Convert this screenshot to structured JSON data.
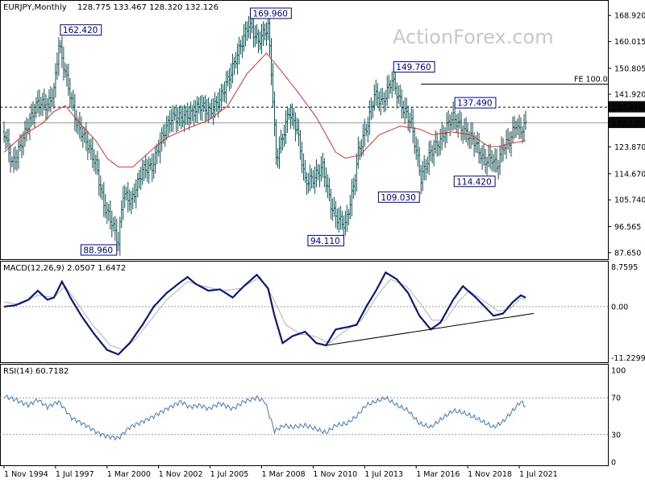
{
  "header": {
    "symbol": "EURJPY,Monthly",
    "ohlc": "128.775 133.467 128.320 132.126",
    "watermark": "ActionForex.com"
  },
  "colors": {
    "price_bars": "#1f4e4e",
    "moving_average": "#e03030",
    "macd_line": "#0a1a78",
    "macd_signal": "#b0b0b0",
    "rsi_line": "#3a78c8",
    "label_text": "#000080",
    "price_tag_bg": "#0a0a0a"
  },
  "chart_data": [
    {
      "type": "ohlc",
      "panel": "price",
      "title": "EURJPY,Monthly",
      "y_ticks": [
        "168.920",
        "160.015",
        "150.805",
        "141.920",
        "132.126",
        "123.870",
        "114.670",
        "105.740",
        "96.565",
        "87.650"
      ],
      "ylim": [
        86.5,
        172
      ],
      "price_tag": "132.126",
      "reference_lines": [
        {
          "label": "137.490",
          "value": 137.49,
          "style": "dashed"
        },
        {
          "label": "FE 100.0",
          "value": 145.4,
          "style": "solid"
        }
      ],
      "swing_labels": [
        {
          "label": "162.420",
          "value": 162.42,
          "date": "1997-09"
        },
        {
          "label": "169.960",
          "value": 169.96,
          "date": "2007-07"
        },
        {
          "label": "88.960",
          "value": 88.96,
          "date": "2000-10"
        },
        {
          "label": "94.110",
          "value": 94.11,
          "date": "2012-07"
        },
        {
          "label": "149.760",
          "value": 149.76,
          "date": "2014-12"
        },
        {
          "label": "109.030",
          "value": 109.03,
          "date": "2016-06"
        },
        {
          "label": "137.490",
          "value": 137.49,
          "date": "2018-02"
        },
        {
          "label": "114.420",
          "value": 114.42,
          "date": "2020-05"
        }
      ],
      "anchors": [
        [
          "1994-11",
          129.0
        ],
        [
          "1995-04",
          118.0
        ],
        [
          "1995-07",
          121.0
        ],
        [
          "1996-03",
          133.0
        ],
        [
          "1996-08",
          139.0
        ],
        [
          "1997-02",
          138.0
        ],
        [
          "1997-06",
          143.0
        ],
        [
          "1997-09",
          159.0
        ],
        [
          "1998-02",
          147.0
        ],
        [
          "1998-08",
          132.0
        ],
        [
          "1999-02",
          126.0
        ],
        [
          "1999-08",
          118.0
        ],
        [
          "2000-01",
          104.0
        ],
        [
          "2000-06",
          98.0
        ],
        [
          "2000-10",
          91.0
        ],
        [
          "2001-01",
          108.0
        ],
        [
          "2001-06",
          105.0
        ],
        [
          "2002-01",
          116.0
        ],
        [
          "2002-07",
          117.0
        ],
        [
          "2003-01",
          127.0
        ],
        [
          "2003-07",
          134.0
        ],
        [
          "2004-01",
          134.0
        ],
        [
          "2004-07",
          135.0
        ],
        [
          "2005-01",
          138.0
        ],
        [
          "2005-07",
          136.0
        ],
        [
          "2006-01",
          140.0
        ],
        [
          "2006-07",
          148.0
        ],
        [
          "2007-01",
          157.0
        ],
        [
          "2007-07",
          166.0
        ],
        [
          "2008-01",
          160.0
        ],
        [
          "2008-07",
          165.0
        ],
        [
          "2008-09",
          150.0
        ],
        [
          "2008-12",
          120.0
        ],
        [
          "2009-03",
          125.0
        ],
        [
          "2009-08",
          136.0
        ],
        [
          "2010-01",
          130.0
        ],
        [
          "2010-06",
          112.0
        ],
        [
          "2010-11",
          113.0
        ],
        [
          "2011-05",
          117.0
        ],
        [
          "2011-10",
          104.0
        ],
        [
          "2012-01",
          100.0
        ],
        [
          "2012-07",
          97.0
        ],
        [
          "2012-12",
          110.0
        ],
        [
          "2013-03",
          122.0
        ],
        [
          "2013-09",
          132.0
        ],
        [
          "2014-01",
          142.0
        ],
        [
          "2014-06",
          139.0
        ],
        [
          "2014-12",
          147.0
        ],
        [
          "2015-06",
          138.0
        ],
        [
          "2015-12",
          132.0
        ],
        [
          "2016-06",
          113.0
        ],
        [
          "2016-12",
          122.0
        ],
        [
          "2017-06",
          126.0
        ],
        [
          "2017-12",
          133.0
        ],
        [
          "2018-02",
          134.0
        ],
        [
          "2018-09",
          129.0
        ],
        [
          "2019-03",
          126.0
        ],
        [
          "2019-09",
          119.0
        ],
        [
          "2020-02",
          120.0
        ],
        [
          "2020-05",
          117.0
        ],
        [
          "2020-09",
          124.0
        ],
        [
          "2021-01",
          126.0
        ],
        [
          "2021-05",
          132.0
        ],
        [
          "2021-07",
          129.0
        ],
        [
          "2021-11",
          131.5
        ]
      ],
      "moving_average": [
        [
          "1994-11",
          122.0
        ],
        [
          "1995-11",
          128.0
        ],
        [
          "1996-11",
          132.0
        ],
        [
          "1997-06",
          136.0
        ],
        [
          "1998-01",
          138.0
        ],
        [
          "1998-10",
          132.0
        ],
        [
          "1999-08",
          126.0
        ],
        [
          "2000-03",
          120.0
        ],
        [
          "2000-10",
          117.0
        ],
        [
          "2001-07",
          117.0
        ],
        [
          "2002-05",
          122.0
        ],
        [
          "2003-04",
          127.0
        ],
        [
          "2004-04",
          130.0
        ],
        [
          "2005-06",
          133.0
        ],
        [
          "2006-06",
          138.0
        ],
        [
          "2007-06",
          149.0
        ],
        [
          "2008-06",
          156.0
        ],
        [
          "2009-03",
          150.0
        ],
        [
          "2010-01",
          143.0
        ],
        [
          "2011-01",
          134.0
        ],
        [
          "2012-01",
          122.0
        ],
        [
          "2012-07",
          120.0
        ],
        [
          "2013-04",
          121.0
        ],
        [
          "2014-04",
          128.0
        ],
        [
          "2015-05",
          131.0
        ],
        [
          "2016-05",
          130.0
        ],
        [
          "2017-01",
          128.0
        ],
        [
          "2018-01",
          129.0
        ],
        [
          "2019-01",
          128.0
        ],
        [
          "2019-12",
          124.0
        ],
        [
          "2020-06",
          124.0
        ],
        [
          "2021-01",
          125.0
        ],
        [
          "2021-11",
          126.0
        ]
      ]
    },
    {
      "type": "line",
      "panel": "macd",
      "title": "MACD(12,26,9) 2.0507 1.6472",
      "y_ticks": [
        "8.7595",
        "0.00",
        "-11.2299"
      ],
      "ylim": [
        -11.5,
        9.0
      ],
      "series": [
        {
          "values": [
            [
              "1994-11",
              0.0
            ],
            [
              "1995-06",
              0.3
            ],
            [
              "1996-02",
              1.5
            ],
            [
              "1996-08",
              3.5
            ],
            [
              "1997-02",
              1.5
            ],
            [
              "1997-06",
              2.0
            ],
            [
              "1997-11",
              5.5
            ],
            [
              "1998-05",
              1.5
            ],
            [
              "1998-11",
              -2.0
            ],
            [
              "1999-07",
              -6.0
            ],
            [
              "2000-03",
              -9.5
            ],
            [
              "2000-10",
              -10.5
            ],
            [
              "2001-05",
              -8.0
            ],
            [
              "2002-01",
              -4.0
            ],
            [
              "2002-08",
              0.0
            ],
            [
              "2003-04",
              3.0
            ],
            [
              "2004-01",
              5.5
            ],
            [
              "2004-05",
              6.5
            ],
            [
              "2004-10",
              5.0
            ],
            [
              "2005-06",
              3.5
            ],
            [
              "2006-01",
              3.8
            ],
            [
              "2006-09",
              2.0
            ],
            [
              "2007-04",
              4.5
            ],
            [
              "2007-12",
              7.0
            ],
            [
              "2008-07",
              4.0
            ],
            [
              "2008-11",
              -2.0
            ],
            [
              "2009-04",
              -8.0
            ],
            [
              "2009-10",
              -6.5
            ],
            [
              "2010-06",
              -5.5
            ],
            [
              "2011-01",
              -8.0
            ],
            [
              "2011-07",
              -8.5
            ],
            [
              "2012-01",
              -5.0
            ],
            [
              "2012-08",
              -4.5
            ],
            [
              "2013-02",
              -4.0
            ],
            [
              "2013-08",
              0.0
            ],
            [
              "2014-02",
              3.5
            ],
            [
              "2014-08",
              7.5
            ],
            [
              "2015-03",
              6.0
            ],
            [
              "2015-10",
              3.0
            ],
            [
              "2016-05",
              -2.0
            ],
            [
              "2016-12",
              -5.0
            ],
            [
              "2017-06",
              -3.5
            ],
            [
              "2018-02",
              1.5
            ],
            [
              "2018-08",
              4.5
            ],
            [
              "2019-04",
              2.0
            ],
            [
              "2020-03",
              -2.0
            ],
            [
              "2020-09",
              -1.5
            ],
            [
              "2021-03",
              1.0
            ],
            [
              "2021-08",
              2.5
            ],
            [
              "2021-11",
              2.0
            ]
          ]
        },
        {
          "values": [
            [
              "1994-11",
              1.0
            ],
            [
              "1995-09",
              0.5
            ],
            [
              "1996-08",
              2.5
            ],
            [
              "1997-06",
              2.0
            ],
            [
              "1998-01",
              4.5
            ],
            [
              "1998-08",
              1.0
            ],
            [
              "1999-06",
              -4.0
            ],
            [
              "2000-05",
              -8.5
            ],
            [
              "2001-01",
              -9.5
            ],
            [
              "2001-09",
              -7.0
            ],
            [
              "2002-06",
              -3.0
            ],
            [
              "2003-04",
              1.5
            ],
            [
              "2004-05",
              5.5
            ],
            [
              "2005-03",
              4.5
            ],
            [
              "2006-03",
              3.5
            ],
            [
              "2007-02",
              4.0
            ],
            [
              "2008-02",
              6.5
            ],
            [
              "2008-10",
              2.0
            ],
            [
              "2009-06",
              -4.0
            ],
            [
              "2010-03",
              -6.0
            ],
            [
              "2010-12",
              -6.5
            ],
            [
              "2011-09",
              -8.0
            ],
            [
              "2012-06",
              -5.5
            ],
            [
              "2013-05",
              -3.0
            ],
            [
              "2014-03",
              2.5
            ],
            [
              "2014-11",
              6.0
            ],
            [
              "2015-09",
              4.5
            ],
            [
              "2016-06",
              0.5
            ],
            [
              "2017-01",
              -3.0
            ],
            [
              "2017-09",
              -3.0
            ],
            [
              "2018-05",
              1.0
            ],
            [
              "2018-12",
              3.5
            ],
            [
              "2019-08",
              1.5
            ],
            [
              "2020-06",
              -1.0
            ],
            [
              "2021-01",
              -0.5
            ],
            [
              "2021-08",
              1.8
            ],
            [
              "2021-11",
              1.65
            ]
          ]
        }
      ],
      "trendline": [
        [
          "2011-07",
          -8.5
        ],
        [
          "2022-04",
          -1.5
        ]
      ]
    },
    {
      "type": "line",
      "panel": "rsi",
      "title": "RSI(14) 60.7182",
      "y_ticks": [
        "100",
        "70",
        "30",
        "0"
      ],
      "ylim": [
        0,
        100
      ],
      "levels": [
        70,
        30
      ],
      "series": [
        {
          "values": [
            [
              "1994-11",
              72.0
            ],
            [
              "1995-06",
              68.0
            ],
            [
              "1996-02",
              62.0
            ],
            [
              "1996-08",
              68.0
            ],
            [
              "1997-02",
              60.0
            ],
            [
              "1997-09",
              66.0
            ],
            [
              "1998-05",
              48.0
            ],
            [
              "1999-02",
              40.0
            ],
            [
              "1999-09",
              32.0
            ],
            [
              "2000-03",
              28.0
            ],
            [
              "2000-10",
              26.0
            ],
            [
              "2001-05",
              38.0
            ],
            [
              "2002-01",
              44.0
            ],
            [
              "2002-08",
              50.0
            ],
            [
              "2003-04",
              58.0
            ],
            [
              "2004-01",
              66.0
            ],
            [
              "2004-06",
              60.0
            ],
            [
              "2005-01",
              62.0
            ],
            [
              "2005-06",
              58.0
            ],
            [
              "2006-01",
              64.0
            ],
            [
              "2006-09",
              58.0
            ],
            [
              "2007-04",
              66.0
            ],
            [
              "2007-12",
              70.0
            ],
            [
              "2008-05",
              66.0
            ],
            [
              "2008-11",
              34.0
            ],
            [
              "2009-05",
              40.0
            ],
            [
              "2009-10",
              38.0
            ],
            [
              "2010-06",
              40.0
            ],
            [
              "2011-01",
              36.0
            ],
            [
              "2011-07",
              32.0
            ],
            [
              "2012-01",
              40.0
            ],
            [
              "2012-08",
              42.0
            ],
            [
              "2013-02",
              50.0
            ],
            [
              "2013-08",
              62.0
            ],
            [
              "2014-02",
              66.0
            ],
            [
              "2014-08",
              70.0
            ],
            [
              "2015-03",
              62.0
            ],
            [
              "2015-10",
              56.0
            ],
            [
              "2016-05",
              42.0
            ],
            [
              "2016-12",
              38.0
            ],
            [
              "2017-06",
              46.0
            ],
            [
              "2018-02",
              56.0
            ],
            [
              "2018-08",
              54.0
            ],
            [
              "2019-04",
              48.0
            ],
            [
              "2020-03",
              38.0
            ],
            [
              "2020-09",
              44.0
            ],
            [
              "2021-03",
              56.0
            ],
            [
              "2021-08",
              66.0
            ],
            [
              "2021-11",
              60.7
            ]
          ]
        }
      ]
    }
  ],
  "x_axis": {
    "tick_labels": [
      "1 Nov 1994",
      "1 Jul 1997",
      "1 Mar 2000",
      "1 Nov 2002",
      "1 Jul 2005",
      "1 Mar 2008",
      "1 Nov 2010",
      "1 Jul 2013",
      "1 Mar 2016",
      "1 Nov 2018",
      "1 Jul 2021"
    ],
    "tick_dates": [
      "1994-11",
      "1997-07",
      "2000-03",
      "2002-11",
      "2005-07",
      "2008-03",
      "2010-11",
      "2013-07",
      "2016-03",
      "2018-11",
      "2021-07"
    ]
  }
}
